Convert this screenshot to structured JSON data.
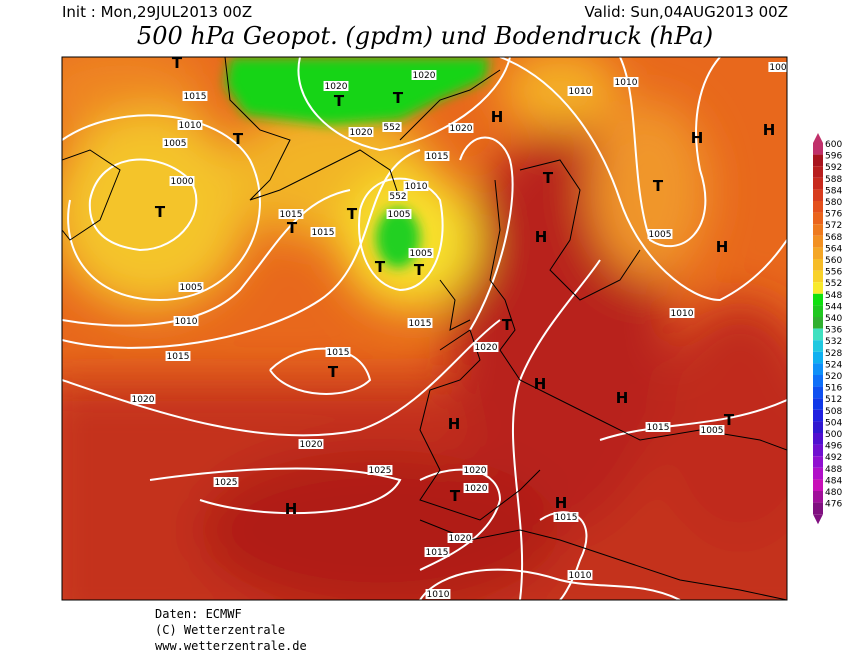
{
  "header": {
    "init": "Init : Mon,29JUL2013 00Z",
    "valid": "Valid: Sun,04AUG2013 00Z",
    "title": "500 hPa Geopot. (gpdm) und Bodendruck (hPa)"
  },
  "colorbar": {
    "levels": [
      600,
      596,
      592,
      588,
      584,
      580,
      576,
      572,
      568,
      564,
      560,
      556,
      552,
      548,
      544,
      540,
      536,
      532,
      528,
      524,
      520,
      516,
      512,
      508,
      504,
      500,
      496,
      492,
      488,
      484,
      480,
      476
    ],
    "colors": [
      "#c0306a",
      "#a8141e",
      "#b81e1e",
      "#c82a1e",
      "#d83c1e",
      "#e4501c",
      "#ea641c",
      "#ee7a1e",
      "#f29022",
      "#f4a626",
      "#f6bc28",
      "#f8d22a",
      "#f8ea2c",
      "#10e010",
      "#20c820",
      "#30b030",
      "#40e0c0",
      "#20c8e0",
      "#10b0f0",
      "#1090f8",
      "#1070f8",
      "#1050f0",
      "#1038e8",
      "#2020e0",
      "#3018d0",
      "#5010d0",
      "#7010d0",
      "#9010d0",
      "#b010c8",
      "#c810b8",
      "#a0109a",
      "#801080"
    ]
  },
  "map": {
    "isobar_labels": [
      "1015",
      "1010",
      "1005",
      "1000",
      "1005",
      "1010",
      "1015",
      "1020",
      "1020",
      "1025",
      "1025",
      "1020",
      "1020",
      "1020",
      "1020",
      "1015",
      "1010",
      "1005",
      "1005",
      "1015",
      "1015",
      "1015",
      "1015",
      "1020",
      "1010",
      "1010",
      "1005",
      "1010",
      "1015",
      "1005",
      "1020",
      "1020",
      "1015",
      "1020",
      "1015",
      "1010",
      "1010",
      "100",
      "552",
      "552"
    ],
    "pressure_systems": [
      "T",
      "T",
      "T",
      "H",
      "T",
      "T",
      "T",
      "T",
      "T",
      "T",
      "H",
      "T",
      "H",
      "H",
      "H",
      "T",
      "T",
      "H",
      "H",
      "H",
      "T",
      "H",
      "H",
      "T",
      "T"
    ]
  },
  "footer": {
    "lines": [
      "Daten: ECMWF",
      "(C) Wetterzentrale",
      "www.wetterzentrale.de"
    ]
  }
}
